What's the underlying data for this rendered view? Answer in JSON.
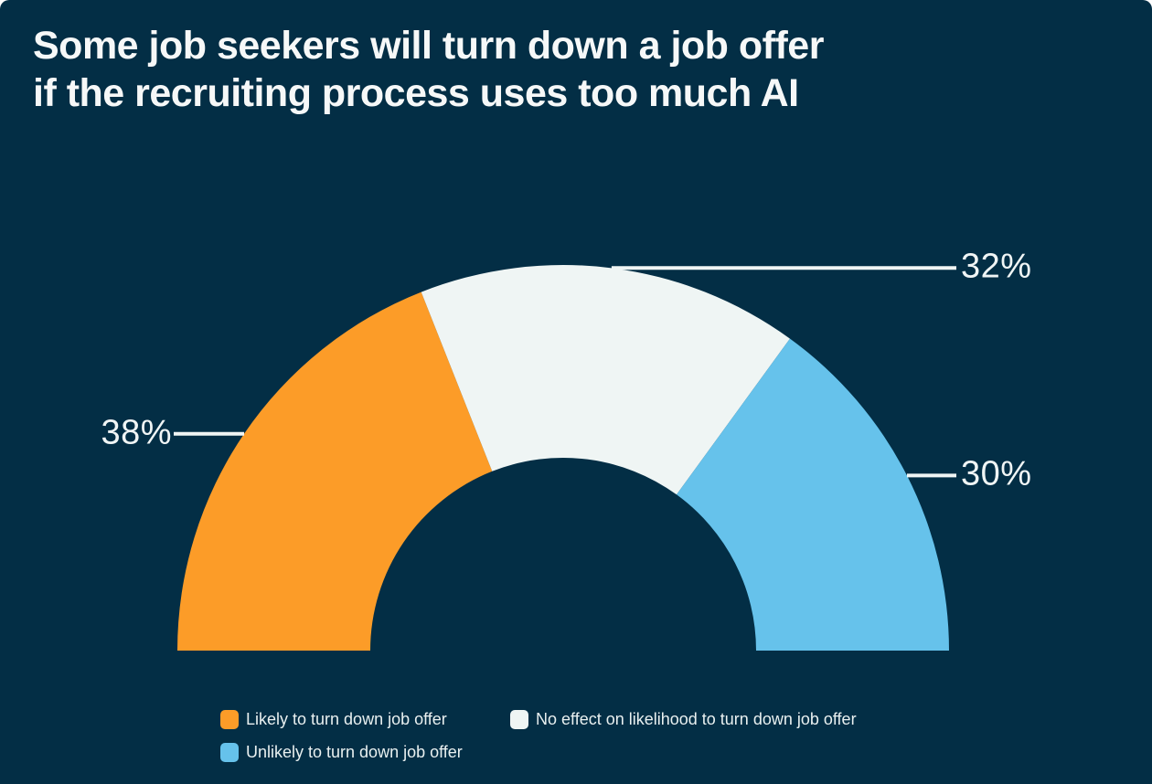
{
  "title_lines": [
    "Some job seekers will turn down a job offer",
    "if the recruiting process uses too much AI"
  ],
  "chart_data": {
    "type": "pie",
    "subtype": "half-donut",
    "title": "Some job seekers will turn down a job offer if the recruiting process uses too much AI",
    "categories": [
      "Likely to turn down job offer",
      "No effect on likelihood to turn down job offer",
      "Unlikely to turn down job offer"
    ],
    "values": [
      38,
      32,
      30
    ],
    "unit": "%",
    "total": 100,
    "start_angle_deg": 180,
    "end_angle_deg": 0,
    "legend_position": "bottom",
    "series": [
      {
        "name": "Likely to turn down job offer",
        "value": 38,
        "label": "38%",
        "color": "#FC9C28",
        "label_side": "left"
      },
      {
        "name": "No effect on likelihood to turn down job offer",
        "value": 32,
        "label": "32%",
        "color": "#EFF5F4",
        "label_side": "right"
      },
      {
        "name": "Unlikely to turn down job offer",
        "value": 30,
        "label": "30%",
        "color": "#66C2EB",
        "label_side": "right"
      }
    ]
  },
  "colors": {
    "card_background": "#032E45",
    "title_text": "#F6F8F8",
    "value_label_text": "#F0F5F5",
    "leader_line": "#F0F5F4",
    "legend_text": "#E9F0F0"
  }
}
